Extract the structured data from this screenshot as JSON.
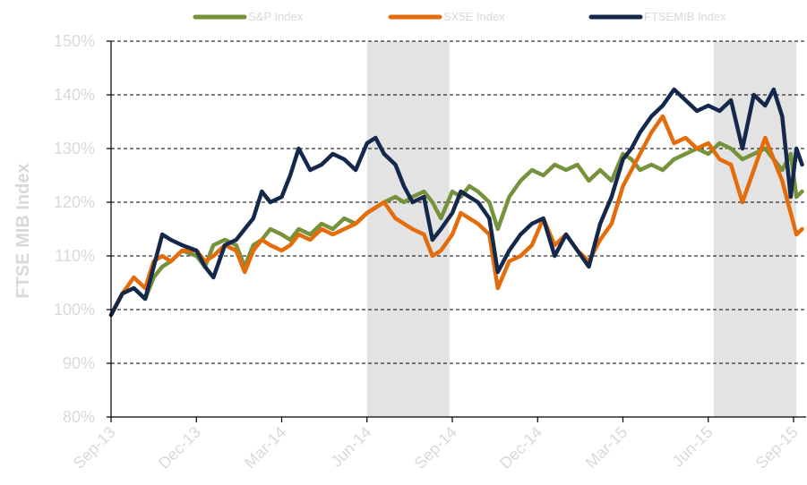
{
  "chart_data": {
    "type": "line",
    "title": "",
    "xlabel": "",
    "ylabel": "FTSE MIB Index",
    "ylim": [
      80,
      150
    ],
    "yticks": [
      "80%",
      "90%",
      "100%",
      "110%",
      "120%",
      "130%",
      "140%",
      "150%"
    ],
    "ytick_values": [
      80,
      90,
      100,
      110,
      120,
      130,
      140,
      150
    ],
    "xlim": [
      0,
      24.3
    ],
    "xticks": [
      "Sep-13",
      "Dec-13",
      "Mar-14",
      "Jun-14",
      "Sep-14",
      "Dec-14",
      "Mar-15",
      "Jun-15",
      "Sep-15"
    ],
    "xtick_values": [
      0,
      3,
      6,
      9,
      12,
      15,
      18,
      21,
      24
    ],
    "grid": "horizontal dashed",
    "legend": "top",
    "shaded_periods": [
      [
        9,
        11.9
      ],
      [
        21.2,
        24.1
      ]
    ],
    "colors": {
      "shade": "#e3e3e3",
      "text_muted": "#d9d9d9",
      "axis": "#000000"
    },
    "series": [
      {
        "name": "S&P Index",
        "color": "#76923c",
        "x": [
          0,
          0.4,
          0.8,
          1.2,
          1.5,
          1.8,
          2.1,
          2.5,
          3,
          3.3,
          3.6,
          4,
          4.4,
          4.7,
          5,
          5.3,
          5.6,
          6,
          6.3,
          6.6,
          7,
          7.4,
          7.8,
          8.2,
          8.6,
          9,
          9.3,
          9.6,
          10,
          10.3,
          10.6,
          11,
          11.3,
          11.6,
          12,
          12.3,
          12.6,
          12.9,
          13.3,
          13.6,
          14,
          14.4,
          14.8,
          15.2,
          15.6,
          16,
          16.4,
          16.8,
          17.2,
          17.6,
          18,
          18.3,
          18.6,
          19,
          19.4,
          19.8,
          20.2,
          20.6,
          21,
          21.4,
          21.8,
          22.2,
          22.6,
          23,
          23.3,
          23.6,
          23.9,
          24.1,
          24.3
        ],
        "values": [
          99,
          103,
          104,
          102,
          106,
          108,
          109,
          111,
          110,
          108,
          112,
          113,
          112,
          108,
          112,
          113,
          115,
          114,
          113,
          115,
          114,
          116,
          115,
          117,
          116,
          118,
          119,
          120,
          121,
          120,
          121,
          122,
          120,
          117,
          122,
          121,
          123,
          122,
          120,
          115,
          121,
          124,
          126,
          125,
          127,
          126,
          127,
          124,
          126,
          124,
          129,
          128,
          126,
          127,
          126,
          128,
          129,
          130,
          129,
          131,
          130,
          128,
          129,
          130,
          128,
          126,
          129,
          121,
          122
        ]
      },
      {
        "name": "SX5E Index",
        "color": "#e46c0a",
        "x": [
          0,
          0.4,
          0.8,
          1.2,
          1.5,
          1.8,
          2.1,
          2.5,
          3,
          3.3,
          3.6,
          4,
          4.4,
          4.7,
          5,
          5.3,
          5.6,
          6,
          6.3,
          6.6,
          7,
          7.4,
          7.8,
          8.2,
          8.6,
          9,
          9.3,
          9.6,
          10,
          10.3,
          10.6,
          11,
          11.3,
          11.6,
          12,
          12.3,
          12.6,
          12.9,
          13.3,
          13.6,
          14,
          14.4,
          14.8,
          15.2,
          15.6,
          16,
          16.4,
          16.8,
          17.2,
          17.6,
          18,
          18.3,
          18.6,
          19,
          19.4,
          19.8,
          20.2,
          20.6,
          21,
          21.4,
          21.8,
          22.2,
          22.6,
          23,
          23.3,
          23.6,
          23.9,
          24.1,
          24.3
        ],
        "values": [
          99,
          103,
          106,
          104,
          109,
          110,
          109,
          111,
          111,
          109,
          110,
          112,
          111,
          107,
          111,
          113,
          112,
          111,
          112,
          114,
          113,
          115,
          114,
          115,
          116,
          118,
          119,
          120,
          117,
          116,
          115,
          114,
          110,
          111,
          114,
          118,
          117,
          116,
          114,
          104,
          109,
          110,
          112,
          117,
          112,
          114,
          111,
          109,
          113,
          116,
          123,
          126,
          129,
          133,
          136,
          131,
          132,
          130,
          131,
          128,
          127,
          120,
          126,
          132,
          128,
          124,
          118,
          114,
          115
        ]
      },
      {
        "name": "FTSEMIB Index",
        "color": "#14284b",
        "x": [
          0,
          0.4,
          0.8,
          1.2,
          1.5,
          1.8,
          2.1,
          2.5,
          3,
          3.3,
          3.6,
          4,
          4.4,
          4.7,
          5,
          5.3,
          5.6,
          6,
          6.3,
          6.6,
          7,
          7.4,
          7.8,
          8.2,
          8.6,
          9,
          9.3,
          9.6,
          10,
          10.3,
          10.6,
          11,
          11.3,
          11.6,
          12,
          12.3,
          12.6,
          12.9,
          13.3,
          13.6,
          14,
          14.4,
          14.8,
          15.2,
          15.6,
          16,
          16.4,
          16.8,
          17.2,
          17.6,
          18,
          18.3,
          18.6,
          19,
          19.4,
          19.8,
          20.2,
          20.6,
          21,
          21.4,
          21.8,
          22.2,
          22.6,
          23,
          23.3,
          23.6,
          23.9,
          24.1,
          24.3
        ],
        "values": [
          99,
          103,
          104,
          102,
          108,
          114,
          113,
          112,
          111,
          108,
          106,
          112,
          113,
          115,
          117,
          122,
          120,
          121,
          125,
          130,
          126,
          127,
          129,
          128,
          126,
          131,
          132,
          129,
          127,
          123,
          120,
          121,
          113,
          115,
          118,
          122,
          121,
          120,
          117,
          107,
          111,
          114,
          116,
          117,
          110,
          114,
          111,
          108,
          116,
          121,
          128,
          130,
          133,
          136,
          138,
          141,
          139,
          137,
          138,
          137,
          139,
          130,
          140,
          138,
          141,
          136,
          121,
          130,
          127
        ]
      }
    ]
  }
}
